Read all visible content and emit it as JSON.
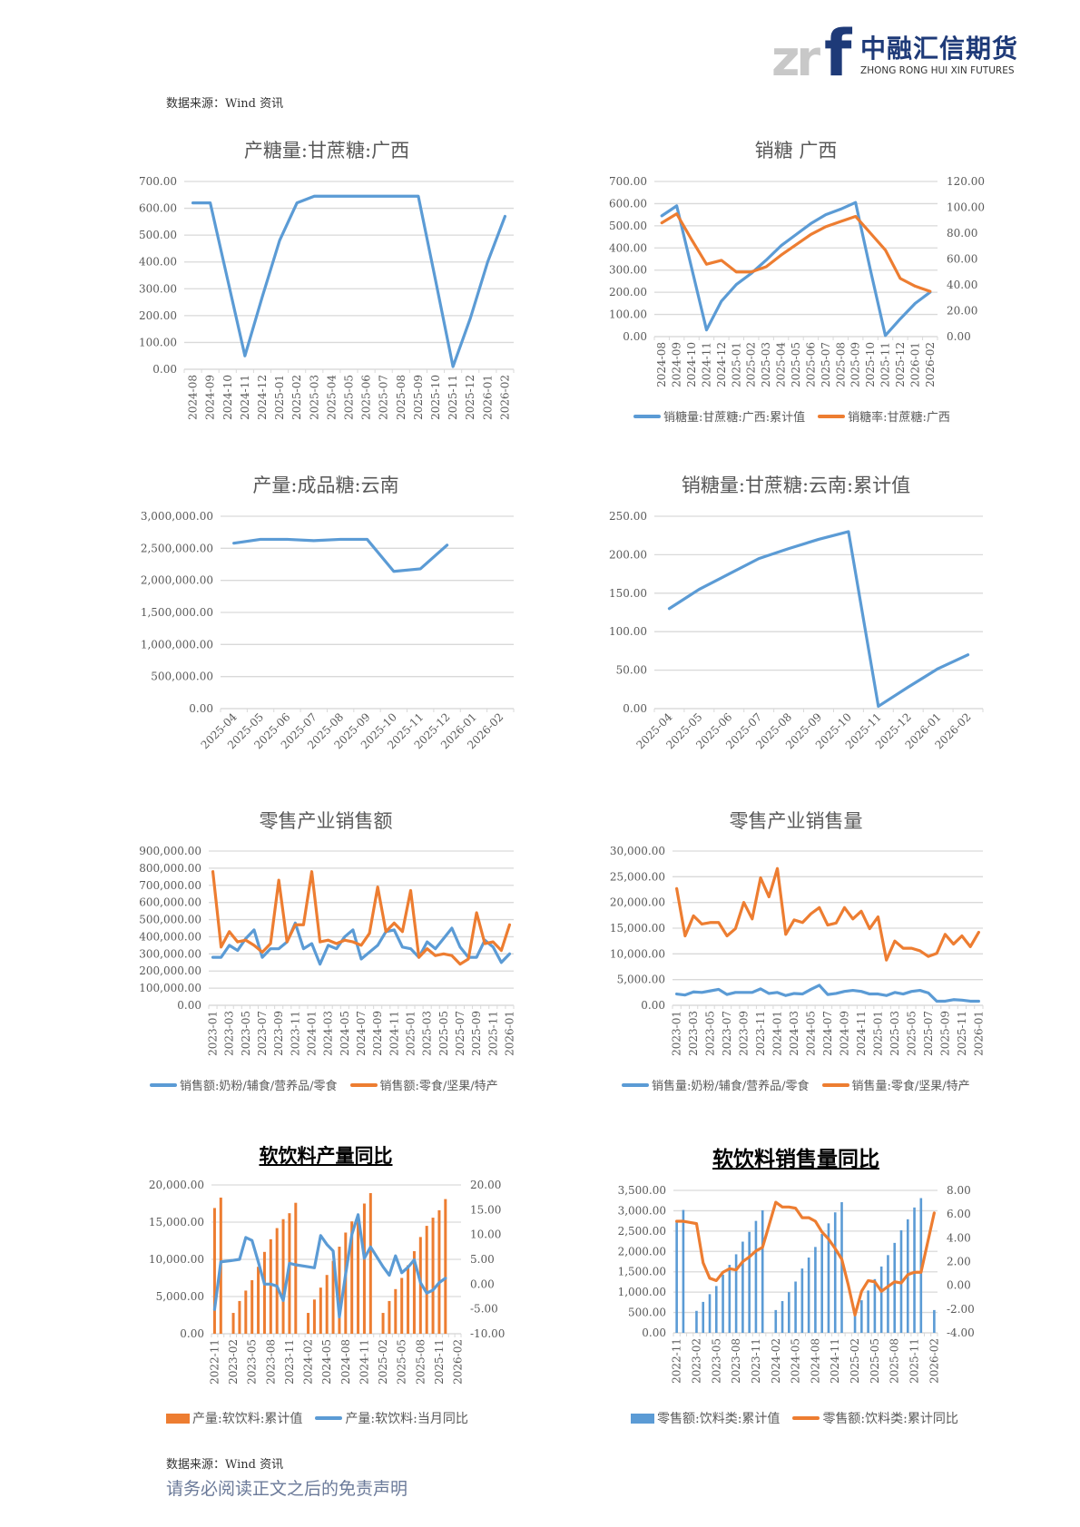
{
  "header": {
    "logo": {
      "mark_grey": "zr",
      "mark_blue": "f",
      "cn": "中融汇信期货",
      "en": "ZHONG RONG HUI XIN FUTURES"
    },
    "source_top": "数据来源：Wind 资讯"
  },
  "footer": {
    "source_bottom": "数据来源：Wind 资讯",
    "disclaimer": "请务必阅读正文之后的免责声明"
  },
  "colors": {
    "blue": "#5b9bd5",
    "orange": "#ed7d31",
    "grid": "#d9d9d9",
    "text": "#595959"
  },
  "chart_data": [
    {
      "id": "c1",
      "type": "line",
      "title": "产糖量:甘蔗糖:广西",
      "categories": [
        "2024-08",
        "2024-09",
        "2024-10",
        "2024-11",
        "2024-12",
        "2025-01",
        "2025-02",
        "2025-03",
        "2025-04",
        "2025-05",
        "2025-06",
        "2025-07",
        "2025-08",
        "2025-09",
        "2025-10",
        "2025-11",
        "2025-12",
        "2026-01",
        "2026-02"
      ],
      "x_tick_labels": [
        "2024-08",
        "2024-09",
        "2024-10",
        "2024-11",
        "2024-12",
        "2025-01",
        "2025-02",
        "2025-03",
        "2025-04",
        "2025-05",
        "2025-06",
        "2025-07",
        "2025-08",
        "2025-09",
        "2025-10",
        "2025-11",
        "2025-12",
        "2026-01",
        "2026-02"
      ],
      "ylim": [
        0,
        700
      ],
      "ystep": 100,
      "grid": true,
      "legend": "none",
      "series": [
        {
          "color": "blue",
          "axis": "left",
          "kind": "line",
          "values": [
            620,
            620,
            335,
            50,
            270,
            480,
            620,
            645,
            645,
            645,
            645,
            645,
            645,
            645,
            330,
            10,
            190,
            400,
            570
          ]
        }
      ]
    },
    {
      "id": "c2",
      "type": "line",
      "title": "销糖 广西",
      "categories": [
        "2024-08",
        "2024-09",
        "2024-10",
        "2024-11",
        "2024-12",
        "2025-01",
        "2025-02",
        "2025-03",
        "2025-04",
        "2025-05",
        "2025-06",
        "2025-07",
        "2025-08",
        "2025-09",
        "2025-10",
        "2025-11",
        "2025-12",
        "2026-01",
        "2026-02"
      ],
      "x_tick_labels": [
        "2024-08",
        "2024-09",
        "2024-10",
        "2024-11",
        "2024-12",
        "2025-01",
        "2025-02",
        "2025-03",
        "2025-04",
        "2025-05",
        "2025-06",
        "2025-07",
        "2025-08",
        "2025-09",
        "2025-10",
        "2025-11",
        "2025-12",
        "2026-01",
        "2026-02"
      ],
      "ylim": [
        0,
        700
      ],
      "ystep": 100,
      "y2lim": [
        0,
        120
      ],
      "y2step": 20,
      "grid": true,
      "legend": "bottom",
      "series": [
        {
          "name": "销糖量:甘蔗糖:广西:累计值",
          "color": "blue",
          "axis": "left",
          "kind": "line",
          "values": [
            545,
            590,
            310,
            30,
            160,
            235,
            285,
            345,
            410,
            460,
            510,
            550,
            575,
            605,
            300,
            5,
            80,
            150,
            200
          ]
        },
        {
          "name": "销糖率:甘蔗糖:广西",
          "color": "orange",
          "axis": "right",
          "kind": "line",
          "values": [
            88,
            95,
            75,
            56,
            59,
            50,
            50,
            54,
            63,
            71,
            79,
            85,
            89,
            93,
            80,
            67,
            45,
            39,
            35
          ]
        }
      ]
    },
    {
      "id": "c3",
      "type": "line",
      "title": "产量:成品糖:云南",
      "categories": [
        "2025-04",
        "2025-05",
        "2025-06",
        "2025-07",
        "2025-08",
        "2025-09",
        "2025-10",
        "2025-11",
        "2025-12",
        "2026-01",
        "2026-02"
      ],
      "x_tick_labels": [
        "2025-04",
        "2025-05",
        "2025-06",
        "2025-07",
        "2025-08",
        "2025-09",
        "2025-10",
        "2025-11",
        "2025-12",
        "2026-01",
        "2026-02"
      ],
      "ylim": [
        0,
        3000000
      ],
      "ystep": 500000,
      "grid": true,
      "legend": "none",
      "series": [
        {
          "color": "blue",
          "axis": "left",
          "kind": "line",
          "values": [
            2580000,
            2640000,
            2640000,
            2620000,
            2640000,
            2640000,
            2140000,
            2180000,
            2550000,
            null,
            null
          ]
        }
      ]
    },
    {
      "id": "c4",
      "type": "line",
      "title": "销糖量:甘蔗糖:云南:累计值",
      "categories": [
        "2025-04",
        "2025-05",
        "2025-06",
        "2025-07",
        "2025-08",
        "2025-09",
        "2025-10",
        "2025-11",
        "2025-12",
        "2026-01",
        "2026-02"
      ],
      "x_tick_labels": [
        "2025-04",
        "2025-05",
        "2025-06",
        "2025-07",
        "2025-08",
        "2025-09",
        "2025-10",
        "2025-11",
        "2025-12",
        "2026-01",
        "2026-02"
      ],
      "ylim": [
        0,
        250
      ],
      "ystep": 50,
      "grid": true,
      "legend": "none",
      "series": [
        {
          "color": "blue",
          "axis": "left",
          "kind": "line",
          "values": [
            130,
            155,
            175,
            195,
            208,
            220,
            230,
            3,
            28,
            52,
            70
          ]
        }
      ]
    },
    {
      "id": "c5",
      "type": "line",
      "title": "零售产业销售额",
      "categories": [
        "2023-01",
        "2023-02",
        "2023-03",
        "2023-04",
        "2023-05",
        "2023-06",
        "2023-07",
        "2023-08",
        "2023-09",
        "2023-10",
        "2023-11",
        "2023-12",
        "2024-01",
        "2024-02",
        "2024-03",
        "2024-04",
        "2024-05",
        "2024-06",
        "2024-07",
        "2024-08",
        "2024-09",
        "2024-10",
        "2024-11",
        "2024-12",
        "2025-01",
        "2025-02",
        "2025-03",
        "2025-04",
        "2025-05",
        "2025-06",
        "2025-07",
        "2025-08",
        "2025-09",
        "2025-10",
        "2025-11",
        "2025-12",
        "2026-01"
      ],
      "x_tick_labels": [
        "2023-01",
        "2023-03",
        "2023-05",
        "2023-07",
        "2023-09",
        "2023-11",
        "2024-01",
        "2024-03",
        "2024-05",
        "2024-07",
        "2024-09",
        "2024-11",
        "2025-01",
        "2025-03",
        "2025-05",
        "2025-07",
        "2025-09",
        "2025-11",
        "2026-01"
      ],
      "ylim": [
        0,
        900000
      ],
      "ystep": 100000,
      "grid": true,
      "legend": "bottom",
      "series": [
        {
          "name": "销售额:奶粉/辅食/营养品/零食",
          "color": "blue",
          "axis": "left",
          "kind": "line",
          "values": [
            280000,
            280000,
            350000,
            320000,
            390000,
            440000,
            280000,
            330000,
            330000,
            370000,
            480000,
            330000,
            360000,
            240000,
            350000,
            330000,
            400000,
            440000,
            270000,
            310000,
            350000,
            430000,
            440000,
            340000,
            330000,
            280000,
            370000,
            330000,
            390000,
            450000,
            340000,
            280000,
            280000,
            380000,
            340000,
            250000,
            300000
          ]
        },
        {
          "name": "销售额:零食/坚果/特产",
          "color": "orange",
          "axis": "left",
          "kind": "line",
          "values": [
            780000,
            340000,
            430000,
            370000,
            380000,
            350000,
            310000,
            360000,
            730000,
            370000,
            470000,
            470000,
            780000,
            370000,
            380000,
            360000,
            380000,
            370000,
            350000,
            420000,
            690000,
            430000,
            480000,
            430000,
            670000,
            280000,
            330000,
            290000,
            300000,
            290000,
            240000,
            270000,
            540000,
            360000,
            370000,
            320000,
            470000
          ]
        }
      ]
    },
    {
      "id": "c6",
      "type": "line",
      "title": "零售产业销售量",
      "categories": [
        "2023-01",
        "2023-02",
        "2023-03",
        "2023-04",
        "2023-05",
        "2023-06",
        "2023-07",
        "2023-08",
        "2023-09",
        "2023-10",
        "2023-11",
        "2023-12",
        "2024-01",
        "2024-02",
        "2024-03",
        "2024-04",
        "2024-05",
        "2024-06",
        "2024-07",
        "2024-08",
        "2024-09",
        "2024-10",
        "2024-11",
        "2024-12",
        "2025-01",
        "2025-02",
        "2025-03",
        "2025-04",
        "2025-05",
        "2025-06",
        "2025-07",
        "2025-08",
        "2025-09",
        "2025-10",
        "2025-11",
        "2025-12",
        "2026-01"
      ],
      "x_tick_labels": [
        "2023-01",
        "2023-03",
        "2023-05",
        "2023-07",
        "2023-09",
        "2023-11",
        "2024-01",
        "2024-03",
        "2024-05",
        "2024-07",
        "2024-09",
        "2024-11",
        "2025-01",
        "2025-03",
        "2025-05",
        "2025-07",
        "2025-09",
        "2025-11",
        "2026-01"
      ],
      "ylim": [
        0,
        30000
      ],
      "ystep": 5000,
      "grid": true,
      "legend": "bottom",
      "series": [
        {
          "name": "销售量:奶粉/辅食/营养品/零食",
          "color": "blue",
          "axis": "left",
          "kind": "line",
          "values": [
            2200,
            2000,
            2600,
            2500,
            2800,
            3100,
            2100,
            2500,
            2500,
            2500,
            3200,
            2300,
            2500,
            1900,
            2300,
            2200,
            3100,
            3900,
            2100,
            2300,
            2700,
            2900,
            2700,
            2200,
            2200,
            1900,
            2500,
            2200,
            2700,
            2900,
            2400,
            800,
            800,
            1100,
            1000,
            800,
            800
          ]
        },
        {
          "name": "销售量:零食/坚果/特产",
          "color": "orange",
          "axis": "left",
          "kind": "line",
          "values": [
            22700,
            13500,
            17400,
            15800,
            16100,
            16100,
            13500,
            14900,
            20000,
            16800,
            24800,
            21100,
            26600,
            13800,
            16600,
            16100,
            17800,
            19000,
            15600,
            16000,
            19000,
            16800,
            18300,
            14900,
            17200,
            8800,
            12500,
            11100,
            11100,
            10600,
            9500,
            10100,
            13800,
            11900,
            13500,
            11400,
            14200
          ]
        }
      ]
    },
    {
      "id": "c7",
      "type": "bar",
      "title": "软饮料产量同比",
      "categories": [
        "2022-11",
        "2022-12",
        "2023-01",
        "2023-02",
        "2023-03",
        "2023-04",
        "2023-05",
        "2023-06",
        "2023-07",
        "2023-08",
        "2023-09",
        "2023-10",
        "2023-11",
        "2023-12",
        "2024-01",
        "2024-02",
        "2024-03",
        "2024-04",
        "2024-05",
        "2024-06",
        "2024-07",
        "2024-08",
        "2024-09",
        "2024-10",
        "2024-11",
        "2024-12",
        "2025-01",
        "2025-02",
        "2025-03",
        "2025-04",
        "2025-05",
        "2025-06",
        "2025-07",
        "2025-08",
        "2025-09",
        "2025-10",
        "2025-11",
        "2025-12",
        "2026-01",
        "2026-02"
      ],
      "x_tick_labels": [
        "2022-11",
        "2023-02",
        "2023-05",
        "2023-08",
        "2023-11",
        "2024-02",
        "2024-05",
        "2024-08",
        "2024-11",
        "2025-02",
        "2025-05",
        "2025-08",
        "2025-11",
        "2026-02"
      ],
      "ylim": [
        0,
        20000
      ],
      "ystep": 5000,
      "y2lim": [
        -10,
        20
      ],
      "y2step": 5,
      "grid": true,
      "legend": "bottom",
      "series": [
        {
          "name": "产量:软饮料:累计值",
          "color": "orange",
          "axis": "left",
          "kind": "bar",
          "values": [
            16900,
            18300,
            null,
            2800,
            4400,
            5800,
            7200,
            9000,
            11000,
            12700,
            14200,
            15400,
            16200,
            17600,
            null,
            2800,
            4600,
            6200,
            7900,
            9800,
            11700,
            13600,
            15100,
            16000,
            17500,
            18900,
            null,
            2800,
            4400,
            6000,
            7500,
            9200,
            11100,
            13000,
            14500,
            15600,
            16600,
            18100,
            null,
            null
          ]
        },
        {
          "name": "产量:软饮料:当月同比",
          "color": "blue",
          "axis": "right",
          "kind": "line",
          "values": [
            -5.1,
            4.5,
            null,
            4.8,
            5.0,
            9.4,
            8.8,
            4.5,
            0.0,
            0.0,
            -0.4,
            -3.3,
            4.2,
            3.9,
            null,
            3.5,
            3.3,
            9.8,
            8.0,
            6.7,
            -6.6,
            2.0,
            10.0,
            14.0,
            5.2,
            7.5,
            null,
            3.5,
            1.8,
            5.7,
            2.3,
            3.4,
            4.9,
            0.3,
            -1.8,
            -1.2,
            0.3,
            1.2,
            null,
            null
          ]
        }
      ]
    },
    {
      "id": "c8",
      "type": "bar",
      "title": "软饮料销售量同比",
      "categories": [
        "2022-11",
        "2022-12",
        "2023-01",
        "2023-02",
        "2023-03",
        "2023-04",
        "2023-05",
        "2023-06",
        "2023-07",
        "2023-08",
        "2023-09",
        "2023-10",
        "2023-11",
        "2023-12",
        "2024-01",
        "2024-02",
        "2024-03",
        "2024-04",
        "2024-05",
        "2024-06",
        "2024-07",
        "2024-08",
        "2024-09",
        "2024-10",
        "2024-11",
        "2024-12",
        "2025-01",
        "2025-02",
        "2025-03",
        "2025-04",
        "2025-05",
        "2025-06",
        "2025-07",
        "2025-08",
        "2025-09",
        "2025-10",
        "2025-11",
        "2025-12",
        "2026-01",
        "2026-02"
      ],
      "x_tick_labels": [
        "2022-11",
        "2023-02",
        "2023-05",
        "2023-08",
        "2023-11",
        "2024-02",
        "2024-05",
        "2024-08",
        "2024-11",
        "2025-02",
        "2025-05",
        "2025-08",
        "2025-11",
        "2026-02"
      ],
      "ylim": [
        0,
        3500
      ],
      "ystep": 500,
      "y2lim": [
        -4,
        8
      ],
      "y2step": 2,
      "grid": true,
      "legend": "bottom",
      "series": [
        {
          "name": "零售额:饮料类:累计值",
          "color": "blue",
          "axis": "left",
          "kind": "bar",
          "values": [
            2740,
            3020,
            null,
            540,
            760,
            950,
            1150,
            1430,
            1670,
            1930,
            2240,
            2480,
            2750,
            3010,
            null,
            560,
            780,
            1000,
            1260,
            1580,
            1850,
            2110,
            2430,
            2690,
            2960,
            3210,
            null,
            560,
            800,
            1040,
            1320,
            1630,
            1910,
            2210,
            2520,
            2790,
            3080,
            3310,
            null,
            560
          ]
        },
        {
          "name": "零售额:饮料类:累计同比",
          "color": "orange",
          "axis": "right",
          "kind": "line",
          "values": [
            5.4,
            5.4,
            5.3,
            5.2,
            1.9,
            0.6,
            0.4,
            1.1,
            1.4,
            1.3,
            2.0,
            2.4,
            2.9,
            3.2,
            5.1,
            7.0,
            6.6,
            6.6,
            6.5,
            5.7,
            5.7,
            5.4,
            4.5,
            3.9,
            3.1,
            2.2,
            0.0,
            -2.5,
            -0.5,
            0.4,
            0.3,
            -0.5,
            -0.1,
            0.3,
            0.2,
            0.9,
            1.1,
            1.1,
            3.6,
            6.1
          ]
        }
      ]
    }
  ]
}
